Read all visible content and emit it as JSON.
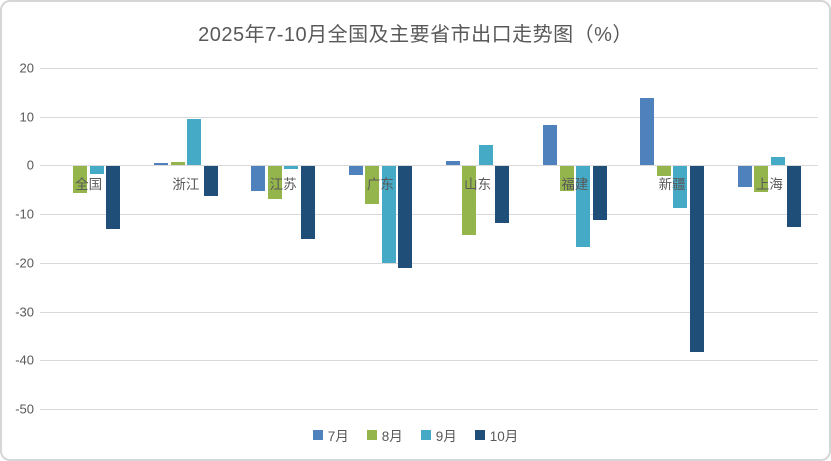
{
  "title": "2025年7-10月全国及主要省市出口走势图（%）",
  "colors": {
    "background": "#FFFFFF",
    "border": "#D6D6D6",
    "gridline": "#D9D9D9",
    "title_text": "#595959",
    "axis_text": "#595959",
    "series_july": "#4F81BD",
    "series_august": "#94B54C",
    "series_september": "#45AAC6",
    "series_october": "#1F4E79"
  },
  "chart_data": {
    "type": "bar",
    "title": "2025年7-10月全国及主要省市出口走势图（%）",
    "categories": [
      "全国",
      "浙江",
      "江苏",
      "广东",
      "山东",
      "福建",
      "新疆",
      "上海"
    ],
    "series": [
      {
        "name": "7月",
        "color": "#4F81BD",
        "values": [
          0,
          0.5,
          -5.0,
          -1.8,
          1.0,
          8.2,
          13.9,
          -4.2
        ]
      },
      {
        "name": "8月",
        "color": "#94B54C",
        "values": [
          -5.4,
          0.8,
          -6.7,
          -7.8,
          -14.0,
          -5.0,
          -2.0,
          -5.2
        ]
      },
      {
        "name": "9月",
        "color": "#45AAC6",
        "values": [
          -1.6,
          9.5,
          -0.5,
          -19.9,
          4.2,
          -16.6,
          -8.6,
          1.8
        ]
      },
      {
        "name": "10月",
        "color": "#1F4E79",
        "values": [
          -12.8,
          -6.0,
          -14.9,
          -20.8,
          -11.7,
          -10.9,
          -38.0,
          -12.5
        ]
      }
    ],
    "xlabel": "",
    "ylabel": "",
    "ylim": [
      -50,
      20
    ],
    "yticks": [
      20,
      10,
      0,
      -10,
      -20,
      -30,
      -40,
      -50
    ],
    "grid": true,
    "legend_position": "bottom"
  }
}
